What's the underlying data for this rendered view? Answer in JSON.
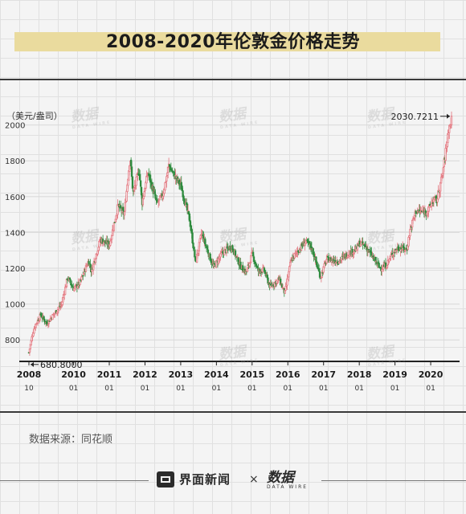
{
  "title": "2008-2020年伦敦金价格走势",
  "source_text": "数据来源：同花顺",
  "brand": {
    "name": "界面新闻",
    "times": "×",
    "logo_text": "数据",
    "logo_sub": "DATA WIRE"
  },
  "watermark": {
    "text": "数据",
    "sub": "DATA WIRE"
  },
  "colors": {
    "up": "#e2747d",
    "down": "#2e8b3e",
    "title_band": "#eadb9e"
  },
  "chart_data": {
    "type": "candlestick",
    "title": "2008-2020年伦敦金价格走势",
    "unit_label": "（美元/盎司）",
    "ylim": [
      680,
      2070
    ],
    "yticks": [
      800,
      1000,
      1200,
      1400,
      1600,
      1800,
      2000
    ],
    "xticks": [
      {
        "year": "2008",
        "month": "10"
      },
      {
        "year": "2010",
        "month": "01"
      },
      {
        "year": "2011",
        "month": "01"
      },
      {
        "year": "2012",
        "month": "01"
      },
      {
        "year": "2013",
        "month": "01"
      },
      {
        "year": "2014",
        "month": "01"
      },
      {
        "year": "2015",
        "month": "01"
      },
      {
        "year": "2016",
        "month": "01"
      },
      {
        "year": "2017",
        "month": "01"
      },
      {
        "year": "2018",
        "month": "01"
      },
      {
        "year": "2019",
        "month": "01"
      },
      {
        "year": "2020",
        "month": "01"
      }
    ],
    "start": "2008-10",
    "end": "2020-08",
    "close_trend": [
      [
        "2008-10",
        730
      ],
      [
        "2008-11",
        815
      ],
      [
        "2008-12",
        880
      ],
      [
        "2009-02",
        940
      ],
      [
        "2009-04",
        890
      ],
      [
        "2009-06",
        935
      ],
      [
        "2009-09",
        1000
      ],
      [
        "2009-11",
        1150
      ],
      [
        "2010-01",
        1085
      ],
      [
        "2010-03",
        1115
      ],
      [
        "2010-06",
        1240
      ],
      [
        "2010-07",
        1185
      ],
      [
        "2010-10",
        1360
      ],
      [
        "2011-01",
        1330
      ],
      [
        "2011-04",
        1550
      ],
      [
        "2011-06",
        1500
      ],
      [
        "2011-08",
        1820
      ],
      [
        "2011-09",
        1620
      ],
      [
        "2011-11",
        1750
      ],
      [
        "2011-12",
        1565
      ],
      [
        "2012-02",
        1735
      ],
      [
        "2012-05",
        1560
      ],
      [
        "2012-07",
        1610
      ],
      [
        "2012-09",
        1775
      ],
      [
        "2012-11",
        1715
      ],
      [
        "2013-01",
        1665
      ],
      [
        "2013-04",
        1470
      ],
      [
        "2013-06",
        1230
      ],
      [
        "2013-08",
        1395
      ],
      [
        "2013-12",
        1205
      ],
      [
        "2014-03",
        1285
      ],
      [
        "2014-06",
        1325
      ],
      [
        "2014-09",
        1215
      ],
      [
        "2014-11",
        1175
      ],
      [
        "2015-01",
        1280
      ],
      [
        "2015-03",
        1185
      ],
      [
        "2015-05",
        1190
      ],
      [
        "2015-07",
        1095
      ],
      [
        "2015-10",
        1140
      ],
      [
        "2015-12",
        1060
      ],
      [
        "2016-02",
        1240
      ],
      [
        "2016-04",
        1290
      ],
      [
        "2016-07",
        1350
      ],
      [
        "2016-09",
        1315
      ],
      [
        "2016-12",
        1150
      ],
      [
        "2017-02",
        1250
      ],
      [
        "2017-06",
        1240
      ],
      [
        "2017-09",
        1280
      ],
      [
        "2017-12",
        1305
      ],
      [
        "2018-01",
        1340
      ],
      [
        "2018-03",
        1325
      ],
      [
        "2018-06",
        1250
      ],
      [
        "2018-08",
        1200
      ],
      [
        "2018-10",
        1215
      ],
      [
        "2018-12",
        1280
      ],
      [
        "2019-02",
        1315
      ],
      [
        "2019-05",
        1305
      ],
      [
        "2019-06",
        1410
      ],
      [
        "2019-08",
        1520
      ],
      [
        "2019-10",
        1515
      ],
      [
        "2019-12",
        1520
      ],
      [
        "2020-02",
        1585
      ],
      [
        "2020-03",
        1575
      ],
      [
        "2020-05",
        1730
      ],
      [
        "2020-07",
        1975
      ],
      [
        "2020-08",
        2030
      ]
    ],
    "annotations": [
      {
        "text": "2030.7211",
        "value": 2030.7211,
        "at": "end",
        "arrow": "right"
      },
      {
        "text": "680.8000",
        "value": 680.8,
        "at": "start",
        "arrow": "left"
      }
    ]
  }
}
